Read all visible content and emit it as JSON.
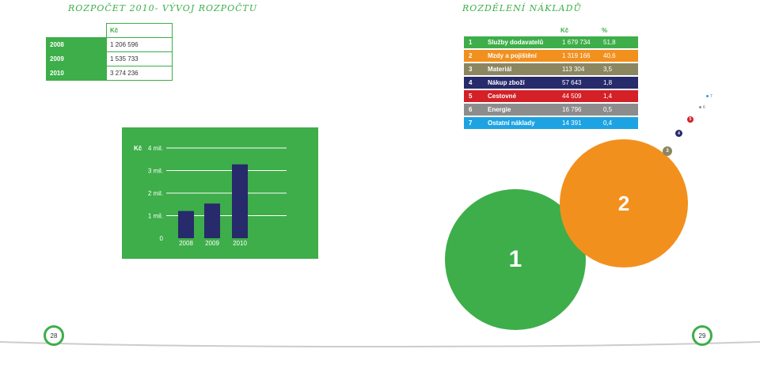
{
  "left_title": "rozpočet 2010- vývoj rozpočtu",
  "right_title": "rozdělení nákladů",
  "budget_table": {
    "currency_header": "Kč",
    "rows": [
      {
        "year": "2008",
        "value": "1 206 596"
      },
      {
        "year": "2009",
        "value": "1 535 733"
      },
      {
        "year": "2010",
        "value": "3 274 236"
      }
    ]
  },
  "chart_data": {
    "type": "bar",
    "categories": [
      "2008",
      "2009",
      "2010"
    ],
    "values": [
      1206596,
      1535733,
      3274236
    ],
    "ylim": [
      0,
      4000000
    ],
    "y_ticks": [
      "0",
      "1 mil.",
      "2 mil.",
      "3 mil.",
      "4 mil."
    ],
    "ylabel": "Kč",
    "grid": true,
    "bar_color": "#272a6b",
    "background": "#3dae49"
  },
  "cost_table": {
    "headers": {
      "kc": "Kč",
      "pct": "%"
    },
    "rows": [
      {
        "num": "1",
        "name": "Služby dodavatelů",
        "kc": "1 679 734",
        "pct": "51,8",
        "color": "#3dae49"
      },
      {
        "num": "2",
        "name": "Mzdy a pojištění",
        "kc": "1 319 166",
        "pct": "40,6",
        "color": "#f2901e"
      },
      {
        "num": "3",
        "name": "Materiál",
        "kc": "113 304",
        "pct": "3,5",
        "color": "#8b8660"
      },
      {
        "num": "4",
        "name": "Nákup zboží",
        "kc": "57 643",
        "pct": "1,8",
        "color": "#272a6b"
      },
      {
        "num": "5",
        "name": "Cestovné",
        "kc": "44 509",
        "pct": "1,4",
        "color": "#d42027"
      },
      {
        "num": "6",
        "name": "Energie",
        "kc": "16 796",
        "pct": "0,5",
        "color": "#8c8c8c"
      },
      {
        "num": "7",
        "name": "Ostatní náklady",
        "kc": "14 391",
        "pct": "0,4",
        "color": "#1ea3e2"
      }
    ]
  },
  "bubbles": [
    "1",
    "2",
    "3",
    "4",
    "5",
    "6",
    "7"
  ],
  "page_left": "28",
  "page_right": "29"
}
